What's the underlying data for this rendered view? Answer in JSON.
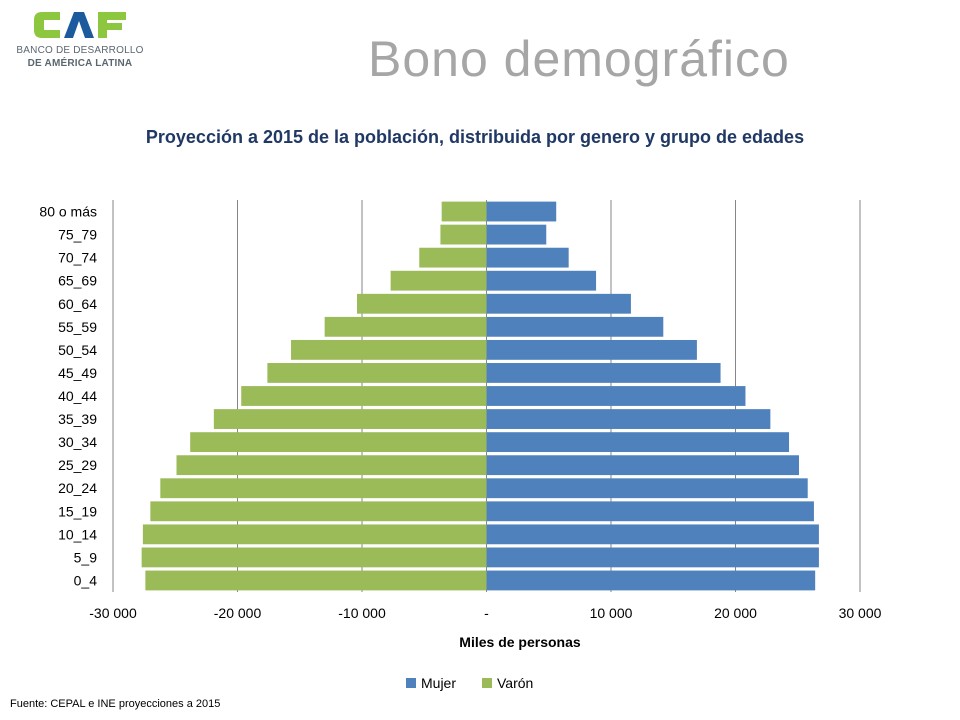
{
  "logo": {
    "mark_text": "CAF",
    "line1": "BANCO DE DESARROLLO",
    "line2": "DE AMÉRICA LATINA",
    "colors": {
      "green": "#8dc63f",
      "blue": "#1c5a9e"
    }
  },
  "slide_title": "Bono demográfico",
  "source_note": "Fuente: CEPAL e INE proyecciones a 2015",
  "chart_data": {
    "type": "bar",
    "orientation": "horizontal",
    "title": "Proyección a 2015 de la población, distribuida por genero y grupo de edades",
    "xlabel": "Miles de personas",
    "ylabel": "",
    "xlim": [
      -30000,
      30000
    ],
    "x_ticks": [
      -30000,
      -20000,
      -10000,
      0,
      10000,
      20000,
      30000
    ],
    "x_tick_labels": [
      "-30 000",
      "-20 000",
      "-10 000",
      "-",
      "10 000",
      "20 000",
      "30 000"
    ],
    "grid": "vertical",
    "legend_position": "bottom",
    "categories": [
      "0_4",
      "5_9",
      "10_14",
      "15_19",
      "20_24",
      "25_29",
      "30_34",
      "35_39",
      "40_44",
      "45_49",
      "50_54",
      "55_59",
      "60_64",
      "65_69",
      "70_74",
      "75_79",
      "80 o más"
    ],
    "series": [
      {
        "name": "Mujer",
        "color": "#4f81bd",
        "values": [
          26400,
          26700,
          26700,
          26300,
          25800,
          25100,
          24300,
          22800,
          20800,
          18800,
          16900,
          14200,
          11600,
          8800,
          6600,
          4800,
          5600
        ]
      },
      {
        "name": "Varón",
        "color": "#9bbb59",
        "values": [
          -27400,
          -27700,
          -27600,
          -27000,
          -26200,
          -24900,
          -23800,
          -21900,
          -19700,
          -17600,
          -15700,
          -13000,
          -10400,
          -7700,
          -5400,
          -3700,
          -3600
        ]
      }
    ]
  }
}
